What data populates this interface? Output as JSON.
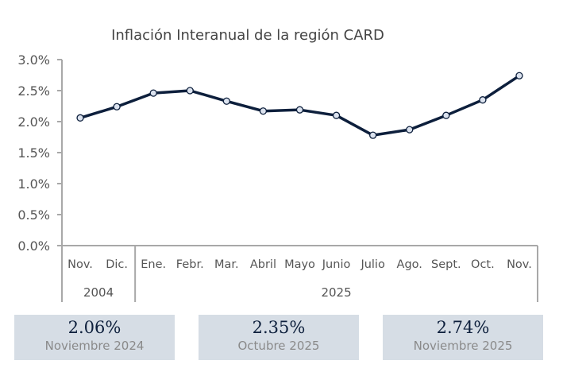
{
  "chart_data": {
    "type": "line",
    "title": "Inflación Interanual de la región CARD",
    "categories": [
      "Nov.",
      "Dic.",
      "Ene.",
      "Febr.",
      "Mar.",
      "Abril",
      "Mayo",
      "Junio",
      "Julio",
      "Ago.",
      "Sept.",
      "Oct.",
      "Nov."
    ],
    "groups": [
      {
        "label": "2004",
        "count": 2
      },
      {
        "label": "2025",
        "count": 11
      }
    ],
    "values": [
      2.06,
      2.24,
      2.46,
      2.5,
      2.33,
      2.17,
      2.19,
      2.1,
      1.78,
      1.87,
      2.1,
      2.35,
      2.74
    ],
    "ylim": [
      0,
      3.0
    ],
    "yticks": [
      "0.0%",
      "0.5%",
      "1.0%",
      "1.5%",
      "2.0%",
      "2.5%",
      "3.0%"
    ],
    "grid": false,
    "line_color": "#0d1f3c",
    "marker_fill": "#dce3ef"
  },
  "summary": [
    {
      "value": "2.06%",
      "label": "Noviembre 2024"
    },
    {
      "value": "2.35%",
      "label": "Octubre 2025"
    },
    {
      "value": "2.74%",
      "label": "Noviembre 2025"
    }
  ]
}
